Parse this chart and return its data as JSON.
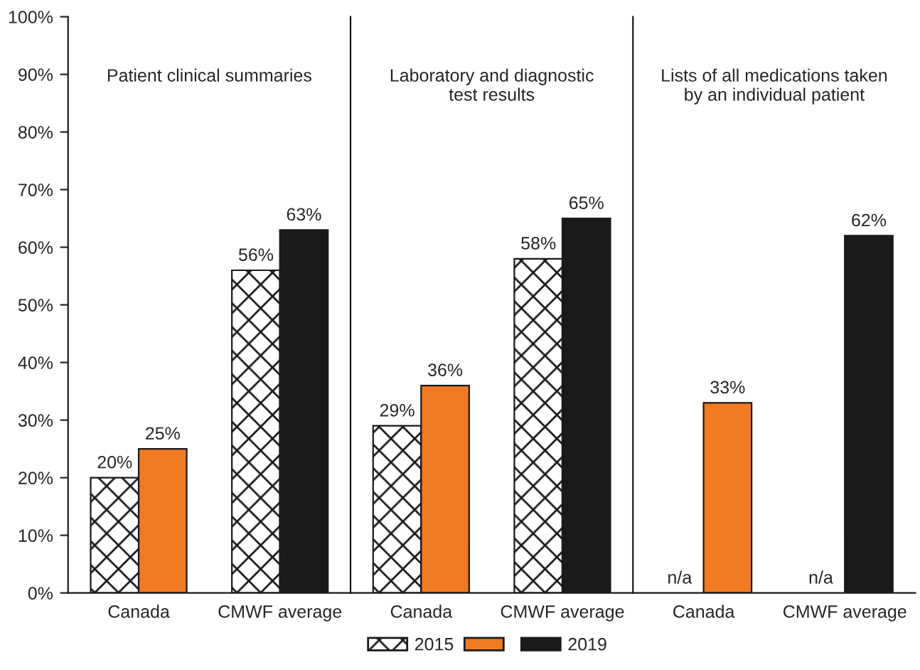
{
  "chart_data": [
    {
      "type": "bar",
      "title": "Patient clinical summaries",
      "categories": [
        "Canada",
        "CMWF average"
      ],
      "series": [
        {
          "name": "2015",
          "color": "#1a1a1a",
          "values": [
            20,
            56
          ],
          "value_labels": [
            "20%",
            "56%"
          ]
        },
        {
          "name": "2019",
          "colors": [
            "#f07a22",
            "#1a1a1a"
          ],
          "values": [
            25,
            63
          ],
          "value_labels": [
            "25%",
            "63%"
          ]
        }
      ],
      "ylim": [
        0,
        100
      ],
      "yticks": [
        {
          "value": 0,
          "label": "0%"
        },
        {
          "value": 10,
          "label": "10%"
        },
        {
          "value": 20,
          "label": "20%"
        },
        {
          "value": 30,
          "label": "30%"
        },
        {
          "value": 40,
          "label": "40%"
        },
        {
          "value": 50,
          "label": "50%"
        },
        {
          "value": 60,
          "label": "60%"
        },
        {
          "value": 70,
          "label": "70%"
        },
        {
          "value": 80,
          "label": "80%"
        },
        {
          "value": 90,
          "label": "90%"
        },
        {
          "value": 100,
          "label": "100%"
        }
      ],
      "legend": "bottom"
    },
    {
      "type": "bar",
      "title": "Laboratory and diagnostic\ntest results",
      "categories": [
        "Canada",
        "CMWF average"
      ],
      "series": [
        {
          "name": "2015",
          "color": "#1a1a1a",
          "values": [
            29,
            58
          ],
          "value_labels": [
            "29%",
            "58%"
          ]
        },
        {
          "name": "2019",
          "colors": [
            "#f07a22",
            "#1a1a1a"
          ],
          "values": [
            36,
            65
          ],
          "value_labels": [
            "36%",
            "65%"
          ]
        }
      ],
      "ylim": [
        0,
        100
      ],
      "tick_labels": "x"
    },
    {
      "type": "bar",
      "title": "Lists of all medications taken\nby an individual patient",
      "categories": [
        "Canada",
        "CMWF average"
      ],
      "series": [
        {
          "name": "2015",
          "color": "#1a1a1a",
          "values": [
            null,
            null
          ],
          "value_labels": [
            "n/a",
            "n/a"
          ]
        },
        {
          "name": "2019",
          "colors": [
            "#f07a22",
            "#1a1a1a"
          ],
          "values": [
            33,
            62
          ],
          "value_labels": [
            "33%",
            "62%"
          ]
        }
      ],
      "ylim": [
        0,
        100
      ],
      "tick_labels": "x"
    }
  ]
}
